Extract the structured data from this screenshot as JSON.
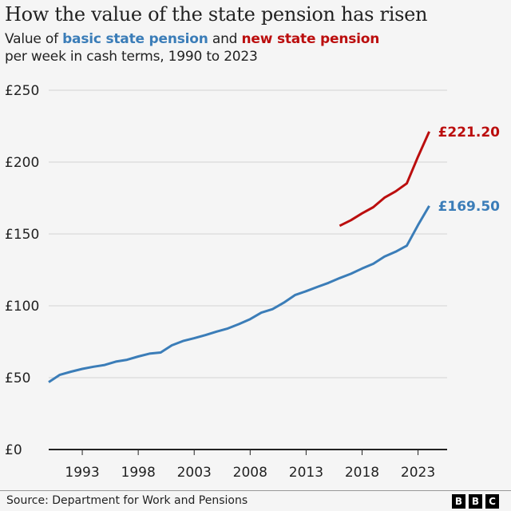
{
  "header": {
    "title": "How the value of the state pension has risen",
    "subtitle_prefix": "Value of ",
    "subtitle_basic": "basic state pension",
    "subtitle_and": " and ",
    "subtitle_new": "new state pension",
    "subtitle_line2": "per week in cash terms, 1990 to 2023"
  },
  "footer": {
    "source": "Source: Department for Work and Pensions",
    "logo_letters": [
      "B",
      "B",
      "C"
    ]
  },
  "chart_data": {
    "type": "line",
    "title": "How the value of the state pension has risen",
    "subtitle": "Value of basic state pension and new state pension per week in cash terms, 1990 to 2023",
    "xlabel": "",
    "ylabel": "",
    "xlim": [
      1990,
      2025.6
    ],
    "ylim": [
      0,
      250
    ],
    "grid": true,
    "y_ticks": [
      0,
      50,
      100,
      150,
      200,
      250
    ],
    "y_tick_labels": [
      "£0",
      "£50",
      "£100",
      "£150",
      "£200",
      "£250"
    ],
    "x_ticks": [
      1993,
      1998,
      2003,
      2008,
      2013,
      2018,
      2023
    ],
    "x_tick_labels": [
      "1993",
      "1998",
      "2003",
      "2008",
      "2013",
      "2018",
      "2023"
    ],
    "legend": "inline-subtitle",
    "series": [
      {
        "name": "basic state pension",
        "color": "#3b7db8",
        "end_label": "£169.50",
        "x": [
          1990,
          1991,
          1992,
          1993,
          1994,
          1995,
          1996,
          1997,
          1998,
          1999,
          2000,
          2001,
          2002,
          2003,
          2004,
          2005,
          2006,
          2007,
          2008,
          2009,
          2010,
          2011,
          2012,
          2013,
          2014,
          2015,
          2016,
          2017,
          2018,
          2019,
          2020,
          2021,
          2022,
          2023,
          2024
        ],
        "values": [
          46.9,
          52.0,
          54.15,
          56.1,
          57.6,
          58.85,
          61.15,
          62.45,
          64.7,
          66.75,
          67.5,
          72.5,
          75.5,
          77.45,
          79.6,
          82.05,
          84.25,
          87.3,
          90.7,
          95.25,
          97.65,
          102.15,
          107.45,
          110.15,
          113.1,
          115.95,
          119.3,
          122.3,
          125.95,
          129.2,
          134.25,
          137.6,
          141.85,
          156.2,
          169.5
        ]
      },
      {
        "name": "new state pension",
        "color": "#bb0e0e",
        "end_label": "£221.20",
        "x": [
          2016,
          2017,
          2018,
          2019,
          2020,
          2021,
          2022,
          2023,
          2024
        ],
        "values": [
          155.65,
          159.55,
          164.35,
          168.6,
          175.2,
          179.6,
          185.15,
          203.85,
          221.2
        ]
      }
    ]
  }
}
